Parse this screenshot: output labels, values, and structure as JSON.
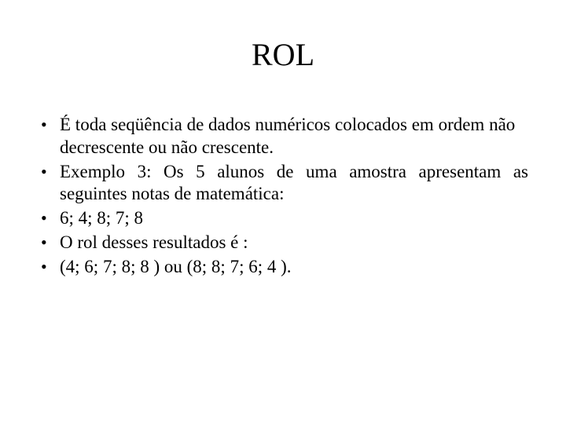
{
  "slide": {
    "title": "ROL",
    "bullets": [
      {
        "text": "É toda seqüência de dados numéricos colocados em ordem não decrescente ou não crescente.",
        "justify": false
      },
      {
        "text": "Exemplo 3: Os 5 alunos de uma amostra apresentam as seguintes notas de matemática:",
        "justify": true
      },
      {
        "text": "6; 4; 8; 7; 8",
        "justify": false
      },
      {
        "text": "O rol desses resultados é :",
        "justify": false
      },
      {
        "text": " (4; 6; 7; 8; 8 ) ou (8; 8; 7; 6; 4 ).",
        "justify": false
      }
    ]
  },
  "style": {
    "background_color": "#ffffff",
    "text_color": "#000000",
    "font_family": "Times New Roman",
    "title_fontsize": 40,
    "body_fontsize": 23,
    "bullet_glyph": "•"
  }
}
